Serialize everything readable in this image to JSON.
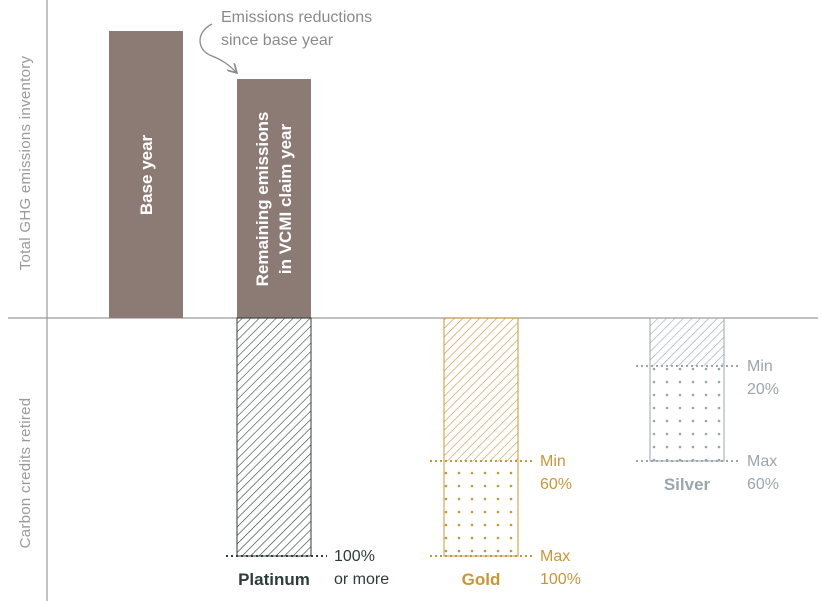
{
  "y_axis": {
    "upper_label": "Total GHG emissions inventory",
    "lower_label": "Carbon credits retired"
  },
  "bars": {
    "base_year": "Base year",
    "remaining_line1": "Remaining emissions",
    "remaining_line2": "in VCMI claim year"
  },
  "annotation": {
    "line1": "Emissions reductions",
    "line2": "since base year"
  },
  "tiers": {
    "platinum": {
      "name": "Platinum",
      "max_line1": "100%",
      "max_line2": "or more",
      "color": "#2f3d3a"
    },
    "gold": {
      "name": "Gold",
      "min_line1": "Min",
      "min_line2": "60%",
      "max_line1": "Max",
      "max_line2": "100%",
      "color": "#c8963a"
    },
    "silver": {
      "name": "Silver",
      "min_line1": "Min",
      "min_line2": "20%",
      "max_line1": "Max",
      "max_line2": "60%",
      "color": "#9aa6ab"
    }
  },
  "colors": {
    "emissions_bar": "#8c7b75",
    "axis": "#9a9a9a"
  }
}
